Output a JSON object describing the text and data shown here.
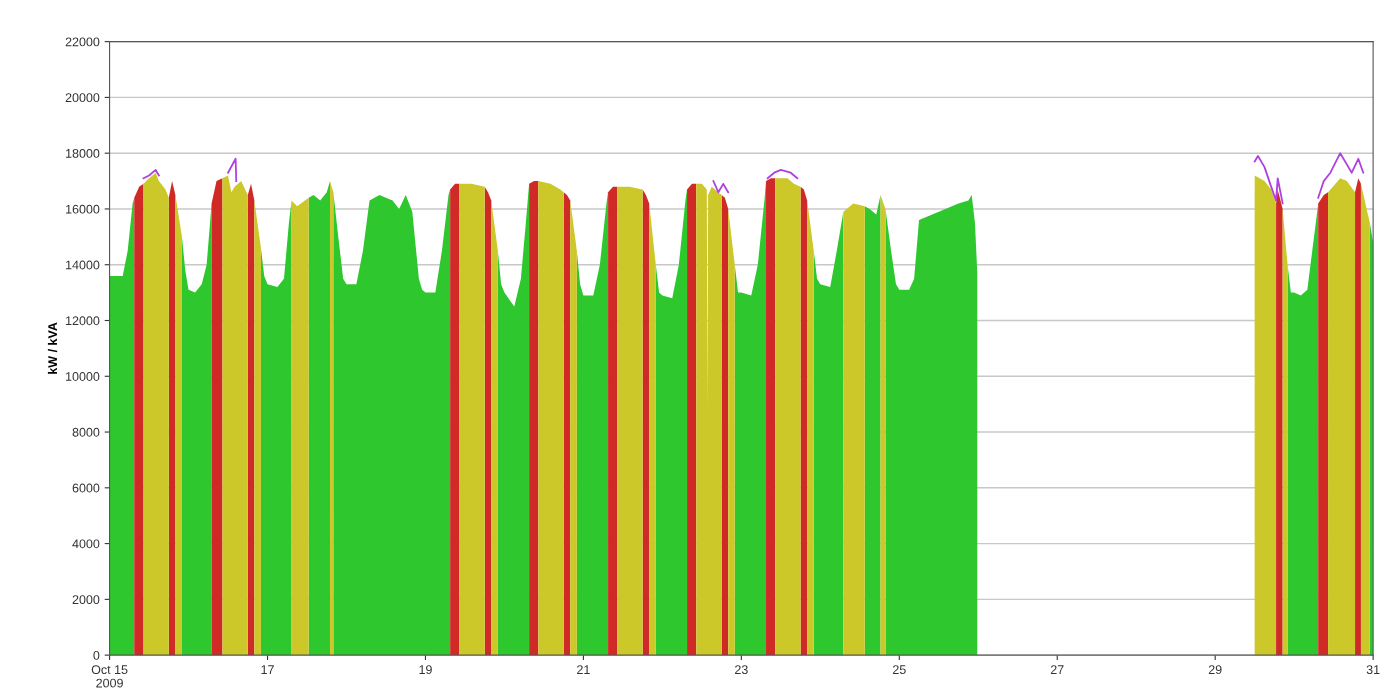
{
  "chart_data": {
    "type": "area",
    "ylabel": "kW / kVA",
    "xlim": [
      "2009-10-15",
      "2009-10-31"
    ],
    "xticks": [
      {
        "value": "2009-10-15",
        "label": "Oct 15\n2009"
      },
      {
        "value": "2009-10-17",
        "label": "17"
      },
      {
        "value": "2009-10-19",
        "label": "19"
      },
      {
        "value": "2009-10-21",
        "label": "21"
      },
      {
        "value": "2009-10-23",
        "label": "23"
      },
      {
        "value": "2009-10-25",
        "label": "25"
      },
      {
        "value": "2009-10-27",
        "label": "27"
      },
      {
        "value": "2009-10-29",
        "label": "29"
      },
      {
        "value": "2009-10-31",
        "label": "31"
      }
    ],
    "ylim": [
      0,
      22000
    ],
    "yticks": [
      0,
      2000,
      4000,
      6000,
      8000,
      10000,
      12000,
      14000,
      16000,
      18000,
      20000,
      22000
    ],
    "grid": "y",
    "series": [
      {
        "type": "area",
        "color": "#2ec82e",
        "x": [
          "2009-10-15T00:00",
          "2009-10-15T02:00",
          "2009-10-15T04:00",
          "2009-10-15T05:30",
          "2009-10-15T07:00",
          "2009-10-15T07:30",
          "2009-10-15T07:31",
          "2009-10-15T22:00",
          "2009-10-15T23:00",
          "2009-10-16T00:00",
          "2009-10-16T02:00",
          "2009-10-16T04:00",
          "2009-10-16T05:30",
          "2009-10-16T07:00",
          "2009-10-16T07:01",
          "2009-10-16T22:00",
          "2009-10-16T23:00",
          "2009-10-17T00:00",
          "2009-10-17T03:00",
          "2009-10-17T05:00",
          "2009-10-17T06:30",
          "2009-10-17T07:18",
          "2009-10-17T07:19",
          "2009-10-17T12:30",
          "2009-10-17T14:00",
          "2009-10-17T16:00",
          "2009-10-17T18:00",
          "2009-10-17T19:00",
          "2009-10-17T19:01",
          "2009-10-17T20:00",
          "2009-10-17T21:30",
          "2009-10-17T23:00",
          "2009-10-18T00:00",
          "2009-10-18T03:00",
          "2009-10-18T05:00",
          "2009-10-18T07:00",
          "2009-10-18T10:00",
          "2009-10-18T14:00",
          "2009-10-18T16:00",
          "2009-10-18T18:00",
          "2009-10-18T20:00",
          "2009-10-18T22:00",
          "2009-10-18T23:00",
          "2009-10-19T00:00",
          "2009-10-19T03:00",
          "2009-10-19T05:00",
          "2009-10-19T07:00",
          "2009-10-19T07:30",
          "2009-10-19T07:31",
          "2009-10-19T22:00",
          "2009-10-19T23:00",
          "2009-10-20T00:00",
          "2009-10-20T03:00",
          "2009-10-20T05:00",
          "2009-10-20T06:30",
          "2009-10-20T07:30",
          "2009-10-20T07:31",
          "2009-10-20T22:00",
          "2009-10-20T23:00",
          "2009-10-21T00:00",
          "2009-10-21T03:00",
          "2009-10-21T05:00",
          "2009-10-21T07:00",
          "2009-10-21T07:30",
          "2009-10-21T07:31",
          "2009-10-21T22:00",
          "2009-10-21T23:00",
          "2009-10-22T00:00",
          "2009-10-22T03:00",
          "2009-10-22T05:00",
          "2009-10-22T07:00",
          "2009-10-22T07:30",
          "2009-10-22T07:31",
          "2009-10-22T22:00",
          "2009-10-22T23:00",
          "2009-10-23T00:00",
          "2009-10-23T03:00",
          "2009-10-23T05:00",
          "2009-10-23T07:00",
          "2009-10-23T07:30",
          "2009-10-23T07:31",
          "2009-10-23T22:00",
          "2009-10-23T23:00",
          "2009-10-24T00:00",
          "2009-10-24T03:00",
          "2009-10-24T05:00",
          "2009-10-24T07:00",
          "2009-10-24T07:01",
          "2009-10-24T13:30",
          "2009-10-24T15:00",
          "2009-10-24T17:00",
          "2009-10-24T18:18",
          "2009-10-24T18:19",
          "2009-10-24T19:48",
          "2009-10-24T21:30",
          "2009-10-24T23:00",
          "2009-10-25T00:00",
          "2009-10-25T03:00",
          "2009-10-25T04:30",
          "2009-10-25T06:00",
          "2009-10-25T10:00",
          "2009-10-25T14:00",
          "2009-10-25T18:00",
          "2009-10-25T21:00",
          "2009-10-25T22:00",
          "2009-10-25T23:00",
          "2009-10-25T23:42",
          "2009-10-25T23:43",
          "2009-10-29T22:00",
          "2009-10-29T23:00",
          "2009-10-30T00:00",
          "2009-10-30T02:00",
          "2009-10-30T04:00",
          "2009-10-30T05:30",
          "2009-10-30T07:00",
          "2009-10-30T07:18",
          "2009-10-30T07:19",
          "2009-10-30T23:00",
          "2009-10-31T00:00"
        ],
        "values": [
          13600,
          13600,
          13600,
          14500,
          16200,
          16400,
          null,
          15000,
          13800,
          13100,
          13000,
          13300,
          14000,
          16200,
          null,
          14600,
          13600,
          13300,
          13200,
          13500,
          15500,
          16300,
          null,
          16400,
          16500,
          16300,
          16600,
          17000,
          null,
          16600,
          15000,
          13500,
          13300,
          13300,
          14500,
          16300,
          16500,
          16300,
          16000,
          16500,
          15900,
          13500,
          13100,
          13000,
          13000,
          14500,
          16500,
          16700,
          null,
          14500,
          13300,
          13000,
          12500,
          13500,
          15500,
          16900,
          null,
          14500,
          13300,
          12900,
          12900,
          14000,
          16200,
          16600,
          null,
          14000,
          13000,
          12900,
          12800,
          14000,
          16300,
          16700,
          null,
          14000,
          13000,
          13000,
          12900,
          14000,
          16300,
          17000,
          null,
          14500,
          13500,
          13300,
          13200,
          14500,
          15900,
          null,
          16100,
          16000,
          15800,
          16500,
          null,
          16000,
          14500,
          13300,
          13100,
          13100,
          13500,
          15600,
          15800,
          16000,
          16200,
          16300,
          16500,
          15500,
          13700,
          null,
          14000,
          13000,
          13000,
          12900,
          13100,
          14500,
          15900,
          16200,
          null,
          15500,
          14800
        ]
      },
      {
        "type": "area",
        "color": "#d02a26",
        "x": [
          "2009-10-15T07:30",
          "2009-10-15T09:00",
          "2009-10-15T10:18",
          "2009-10-15T10:19",
          "2009-10-15T18:00",
          "2009-10-15T19:00",
          "2009-10-15T20:00",
          "2009-10-15T20:01",
          "2009-10-16T07:00",
          "2009-10-16T08:30",
          "2009-10-16T10:18",
          "2009-10-16T10:19",
          "2009-10-16T18:00",
          "2009-10-16T19:00",
          "2009-10-16T20:00",
          "2009-10-16T20:01",
          "2009-10-19T07:30",
          "2009-10-19T09:00",
          "2009-10-19T10:18",
          "2009-10-19T10:19",
          "2009-10-19T18:00",
          "2009-10-19T19:00",
          "2009-10-19T20:00",
          "2009-10-19T20:01",
          "2009-10-20T07:30",
          "2009-10-20T09:00",
          "2009-10-20T10:18",
          "2009-10-20T10:19",
          "2009-10-20T18:00",
          "2009-10-20T19:00",
          "2009-10-20T20:00",
          "2009-10-20T20:01",
          "2009-10-21T07:30",
          "2009-10-21T09:00",
          "2009-10-21T10:18",
          "2009-10-21T10:19",
          "2009-10-21T18:00",
          "2009-10-21T19:00",
          "2009-10-21T20:00",
          "2009-10-21T20:01",
          "2009-10-22T07:30",
          "2009-10-22T09:00",
          "2009-10-22T10:18",
          "2009-10-22T10:19",
          "2009-10-22T18:00",
          "2009-10-22T19:00",
          "2009-10-22T20:00",
          "2009-10-22T20:01",
          "2009-10-23T07:30",
          "2009-10-23T09:00",
          "2009-10-23T10:18",
          "2009-10-23T10:19",
          "2009-10-23T18:00",
          "2009-10-23T19:00",
          "2009-10-23T20:00",
          "2009-10-23T20:01",
          "2009-10-29T18:30",
          "2009-10-29T19:00",
          "2009-10-29T20:30",
          "2009-10-29T20:31",
          "2009-10-30T07:18",
          "2009-10-30T09:00",
          "2009-10-30T10:18",
          "2009-10-30T10:19",
          "2009-10-30T18:30",
          "2009-10-30T19:30",
          "2009-10-30T20:18"
        ],
        "values": [
          16400,
          16800,
          16900,
          null,
          16400,
          17000,
          16500,
          null,
          16200,
          17000,
          17100,
          null,
          16500,
          16900,
          16300,
          null,
          16700,
          16900,
          16900,
          null,
          16800,
          16600,
          16300,
          null,
          16900,
          17000,
          17000,
          null,
          16600,
          16500,
          16300,
          null,
          16600,
          16800,
          16800,
          null,
          16700,
          16500,
          16200,
          null,
          16700,
          16900,
          16900,
          null,
          16500,
          16400,
          16000,
          null,
          17000,
          17100,
          17100,
          null,
          16800,
          16700,
          16300,
          null,
          16200,
          16700,
          16000,
          null,
          16200,
          16500,
          16600,
          null,
          16600,
          17100,
          16900
        ]
      },
      {
        "type": "area",
        "color": "#cdc82a",
        "x": [
          "2009-10-15T10:18",
          "2009-10-15T12:00",
          "2009-10-15T14:00",
          "2009-10-15T15:00",
          "2009-10-15T17:00",
          "2009-10-15T18:00",
          "2009-10-15T18:01",
          "2009-10-15T20:00",
          "2009-10-15T22:00",
          "2009-10-15T22:01",
          "2009-10-16T10:18",
          "2009-10-16T12:00",
          "2009-10-16T13:00",
          "2009-10-16T14:00",
          "2009-10-16T16:00",
          "2009-10-16T18:00",
          "2009-10-16T18:01",
          "2009-10-16T20:00",
          "2009-10-16T22:00",
          "2009-10-16T22:01",
          "2009-10-17T07:18",
          "2009-10-17T09:00",
          "2009-10-17T12:30",
          "2009-10-17T12:31",
          "2009-10-17T19:00",
          "2009-10-17T20:00",
          "2009-10-17T20:01",
          "2009-10-19T10:18",
          "2009-10-19T14:00",
          "2009-10-19T18:00",
          "2009-10-19T18:01",
          "2009-10-19T20:00",
          "2009-10-19T22:00",
          "2009-10-19T22:01",
          "2009-10-20T10:18",
          "2009-10-20T14:00",
          "2009-10-20T17:00",
          "2009-10-20T18:00",
          "2009-10-20T18:01",
          "2009-10-20T20:00",
          "2009-10-20T22:00",
          "2009-10-20T22:01",
          "2009-10-21T10:18",
          "2009-10-21T14:00",
          "2009-10-21T18:00",
          "2009-10-21T18:01",
          "2009-10-21T20:00",
          "2009-10-21T22:00",
          "2009-10-21T22:01",
          "2009-10-22T10:18",
          "2009-10-22T12:00",
          "2009-10-22T13:30",
          "2009-10-22T13:42",
          "2009-10-22T13:54",
          "2009-10-22T15:00",
          "2009-10-22T18:00",
          "2009-10-22T18:01",
          "2009-10-22T20:00",
          "2009-10-22T22:00",
          "2009-10-22T22:01",
          "2009-10-23T10:18",
          "2009-10-23T14:00",
          "2009-10-23T16:00",
          "2009-10-23T18:00",
          "2009-10-23T18:01",
          "2009-10-23T20:00",
          "2009-10-23T22:00",
          "2009-10-23T22:01",
          "2009-10-24T07:00",
          "2009-10-24T10:00",
          "2009-10-24T13:30",
          "2009-10-24T13:31",
          "2009-10-24T18:18",
          "2009-10-24T19:48",
          "2009-10-24T19:49",
          "2009-10-29T12:00",
          "2009-10-29T15:00",
          "2009-10-29T17:00",
          "2009-10-29T18:30",
          "2009-10-29T18:31",
          "2009-10-29T20:30",
          "2009-10-29T22:00",
          "2009-10-29T22:01",
          "2009-10-30T10:18",
          "2009-10-30T14:00",
          "2009-10-30T16:00",
          "2009-10-30T18:30",
          "2009-10-30T18:31",
          "2009-10-30T20:18",
          "2009-10-30T23:00"
        ],
        "values": [
          16900,
          17100,
          17300,
          17000,
          16700,
          16400,
          null,
          16500,
          15000,
          null,
          17100,
          17200,
          16600,
          16800,
          17000,
          16500,
          null,
          16300,
          14600,
          null,
          16300,
          16100,
          16400,
          null,
          17000,
          16600,
          null,
          16900,
          16900,
          16800,
          null,
          16300,
          14500,
          null,
          17000,
          16900,
          16700,
          16600,
          null,
          16300,
          14500,
          null,
          16800,
          16800,
          16700,
          null,
          16200,
          14000,
          null,
          16900,
          16900,
          16700,
          8800,
          16500,
          16800,
          16500,
          null,
          16000,
          14000,
          null,
          17100,
          17100,
          16900,
          16800,
          null,
          16300,
          14500,
          null,
          15900,
          16200,
          16100,
          null,
          16500,
          16000,
          null,
          17200,
          17000,
          16700,
          16200,
          null,
          16000,
          14000,
          null,
          16600,
          17100,
          17000,
          16600,
          null,
          16900,
          15500
        ]
      },
      {
        "type": "line",
        "color": "#b040e0",
        "x": [
          "2009-10-15T10:18",
          "2009-10-15T12:00",
          "2009-10-15T14:00",
          "2009-10-15T15:00",
          "2009-10-15T15:01",
          "2009-10-16T12:00",
          "2009-10-16T14:18",
          "2009-10-16T14:30",
          "2009-10-16T14:31",
          "2009-10-22T15:30",
          "2009-10-22T17:00",
          "2009-10-22T18:30",
          "2009-10-22T20:00",
          "2009-10-22T20:01",
          "2009-10-23T08:00",
          "2009-10-23T10:00",
          "2009-10-23T12:00",
          "2009-10-23T15:00",
          "2009-10-23T17:00",
          "2009-10-23T17:01",
          "2009-10-29T12:00",
          "2009-10-29T13:00",
          "2009-10-29T15:00",
          "2009-10-29T17:00",
          "2009-10-29T18:30",
          "2009-10-29T19:00",
          "2009-10-29T20:30",
          "2009-10-29T20:31",
          "2009-10-30T07:18",
          "2009-10-30T09:00",
          "2009-10-30T11:00",
          "2009-10-30T14:00",
          "2009-10-30T16:00",
          "2009-10-30T17:30",
          "2009-10-30T19:30",
          "2009-10-30T21:00"
        ],
        "values": [
          17100,
          17200,
          17400,
          17200,
          null,
          17300,
          17800,
          17000,
          null,
          17000,
          16600,
          16900,
          16600,
          null,
          17100,
          17300,
          17400,
          17300,
          17100,
          null,
          17700,
          17900,
          17500,
          16800,
          16300,
          17100,
          16200,
          null,
          16400,
          17000,
          17300,
          18000,
          17600,
          17300,
          17800,
          17300
        ]
      }
    ]
  }
}
